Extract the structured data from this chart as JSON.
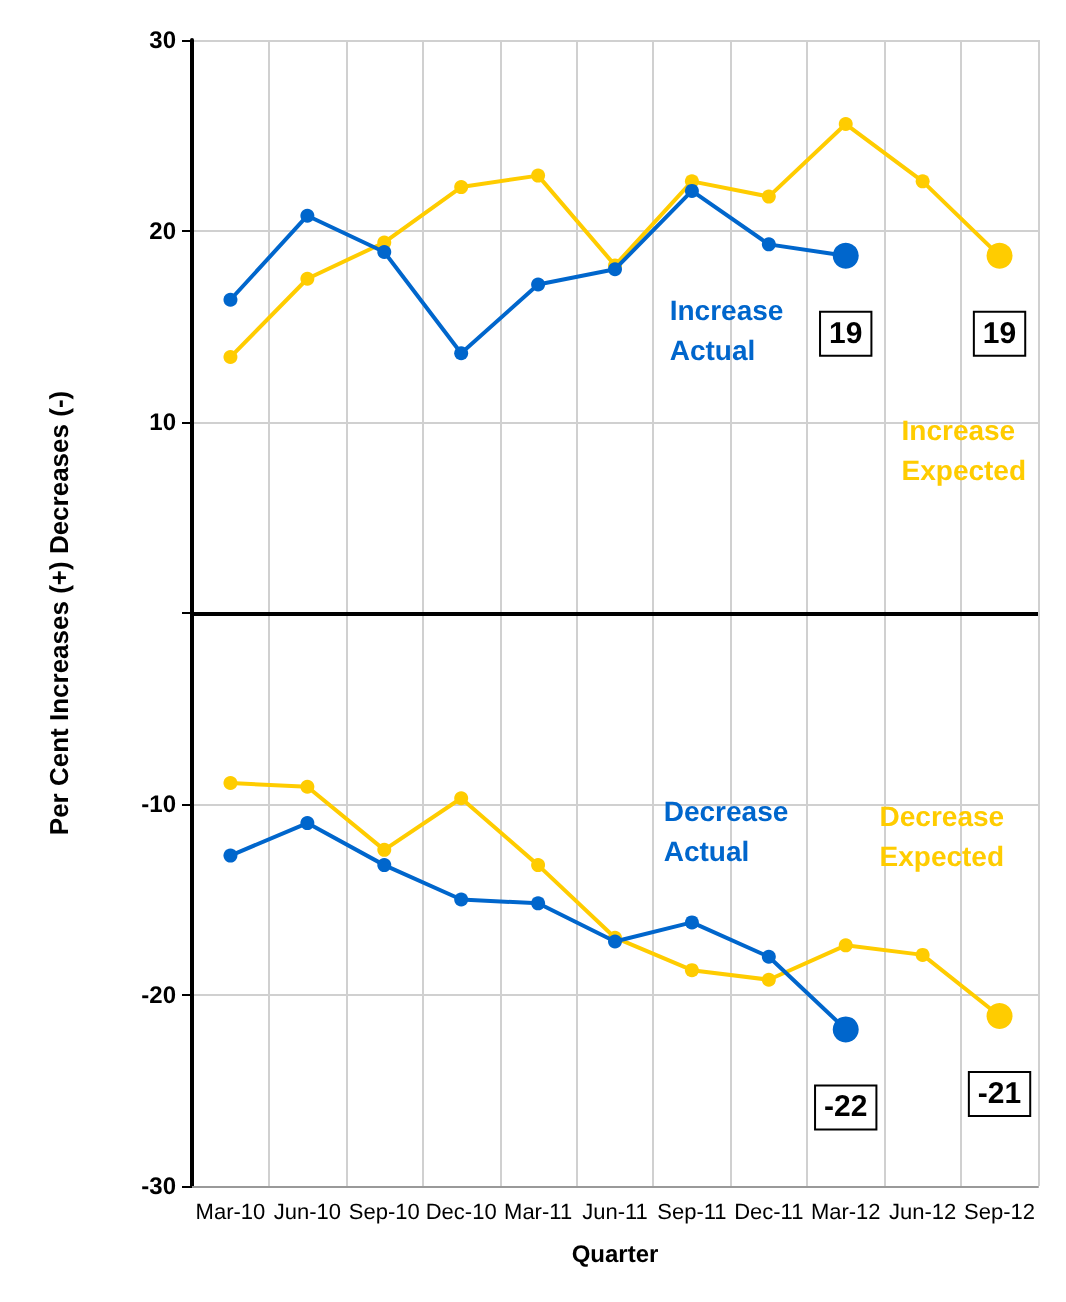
{
  "chart_data": {
    "type": "line",
    "xlabel": "Quarter",
    "ylabel": "Per Cent Increases (+) Decreases (-)",
    "categories": [
      "Mar-10",
      "Jun-10",
      "Sep-10",
      "Dec-10",
      "Mar-11",
      "Jun-11",
      "Sep-11",
      "Dec-11",
      "Mar-12",
      "Jun-12",
      "Sep-12"
    ],
    "series": [
      {
        "name": "Increase Actual",
        "color": "#0066cc",
        "values": [
          16.4,
          20.8,
          18.9,
          13.6,
          17.2,
          18.0,
          22.1,
          19.3,
          18.7,
          null,
          null
        ],
        "value_labels": [
          null,
          null,
          null,
          null,
          null,
          null,
          null,
          null,
          "19",
          null,
          null
        ]
      },
      {
        "name": "Increase Expected",
        "color": "#ffcc00",
        "values": [
          13.4,
          17.5,
          19.4,
          22.3,
          22.9,
          18.2,
          22.6,
          21.8,
          25.6,
          22.6,
          18.7
        ],
        "value_labels": [
          null,
          null,
          null,
          null,
          null,
          null,
          null,
          null,
          null,
          null,
          "19"
        ]
      },
      {
        "name": "Decrease Actual",
        "color": "#0066cc",
        "values": [
          -12.7,
          -11.0,
          -13.2,
          -15.0,
          -15.2,
          -17.2,
          -16.2,
          -18.0,
          -21.8,
          null,
          null
        ],
        "value_labels": [
          null,
          null,
          null,
          null,
          null,
          null,
          null,
          null,
          "-22",
          null,
          null
        ]
      },
      {
        "name": "Decrease Expected",
        "color": "#ffcc00",
        "values": [
          -8.9,
          -9.1,
          -12.4,
          -9.7,
          -13.2,
          -17.0,
          -18.7,
          -19.2,
          -17.4,
          -17.9,
          -21.1
        ],
        "value_labels": [
          null,
          null,
          null,
          null,
          null,
          null,
          null,
          null,
          null,
          null,
          "-21"
        ]
      }
    ],
    "ylim": [
      -30,
      30
    ],
    "yticks": [
      -30,
      -20,
      -10,
      {
        "value": 0,
        "label": null
      },
      10,
      20,
      30
    ],
    "ref_lines": [
      {
        "axis": "y",
        "value": 0,
        "color": "#000000"
      }
    ],
    "grid": true,
    "legend": false,
    "marker": "circle",
    "line_style": "solid"
  }
}
